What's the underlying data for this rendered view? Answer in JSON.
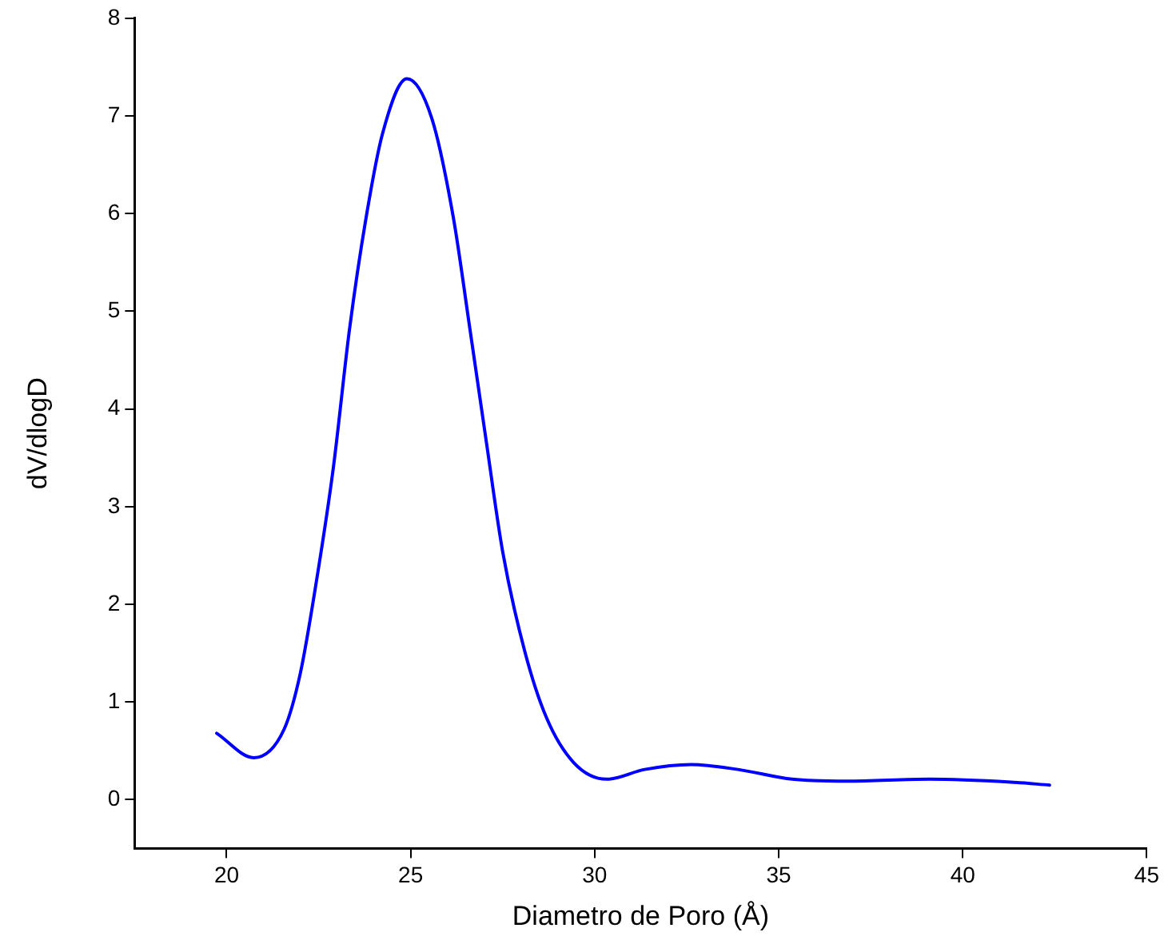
{
  "chart_data": {
    "type": "line",
    "xlabel": "Diametro de Poro (Å)",
    "ylabel": "dV/dlogD",
    "series": [
      {
        "color": "#0000ff",
        "x": [
          19.73,
          20.74,
          21.56,
          22.0,
          22.45,
          22.9,
          23.34,
          23.79,
          24.23,
          24.9,
          25.57,
          26.16,
          26.61,
          27.05,
          27.5,
          28.1,
          28.69,
          29.43,
          30.33,
          31.36,
          32.62,
          33.89,
          35.37,
          36.86,
          39.09,
          41.31,
          42.36
        ],
        "values": [
          0.68,
          0.43,
          0.72,
          1.29,
          2.26,
          3.4,
          4.82,
          5.96,
          6.81,
          7.38,
          6.98,
          5.96,
          4.82,
          3.68,
          2.54,
          1.52,
          0.84,
          0.38,
          0.21,
          0.31,
          0.36,
          0.31,
          0.21,
          0.19,
          0.21,
          0.18,
          0.15
        ]
      }
    ],
    "xlim": [
      17.5,
      45
    ],
    "xticks": [
      20,
      25,
      30,
      35,
      40,
      45
    ],
    "ylim": [
      -0.5,
      8
    ],
    "yticks": [
      0,
      1,
      2,
      3,
      4,
      5,
      6,
      7,
      8
    ],
    "grid": false,
    "legend": false,
    "marker": "none",
    "line_style": "solid"
  }
}
